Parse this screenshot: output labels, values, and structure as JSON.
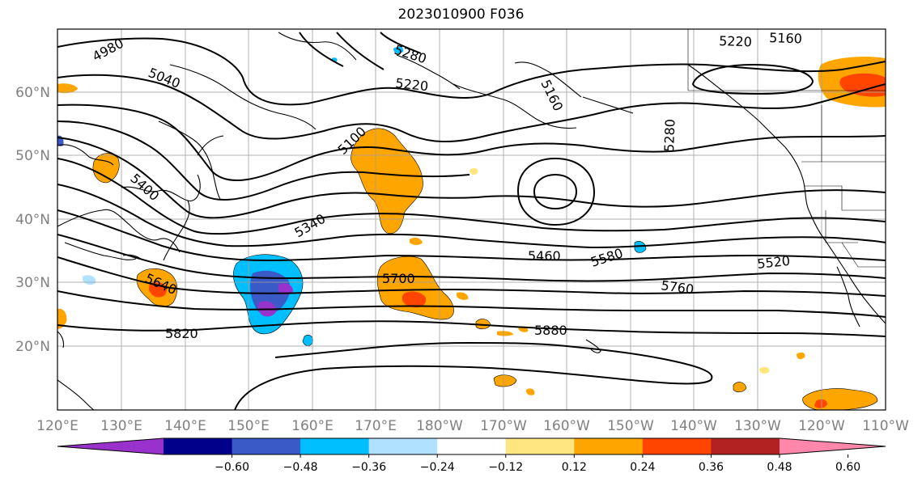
{
  "title": "2023010900 F036",
  "lat_labels": [
    "60°N",
    "50°N",
    "40°N",
    "30°N",
    "20°N"
  ],
  "lon_labels": [
    "120°E",
    "130°E",
    "140°E",
    "150°E",
    "160°E",
    "170°E",
    "180°W",
    "170°W",
    "160°W",
    "150°W",
    "140°W",
    "130°W",
    "120°W",
    "110°W"
  ],
  "contour_labels": [
    "4980",
    "5040",
    "5280",
    "5220",
    "5220",
    "5160",
    "5100",
    "5400",
    "5340",
    "5640",
    "5700",
    "5460",
    "5580",
    "5520",
    "5760",
    "5820",
    "5880",
    "5280",
    "5160"
  ],
  "colorbar": {
    "ticks": [
      "−0.60",
      "−0.48",
      "−0.36",
      "−0.24",
      "−0.12",
      "0.12",
      "0.24",
      "0.36",
      "0.48",
      "0.60"
    ],
    "colors": [
      "#9932cc",
      "#00008b",
      "#3a5bc7",
      "#00bfff",
      "#b0e2ff",
      "#ffffff",
      "#ffe680",
      "#ffa500",
      "#ff4500",
      "#b22222",
      "#ff88aa"
    ]
  }
}
